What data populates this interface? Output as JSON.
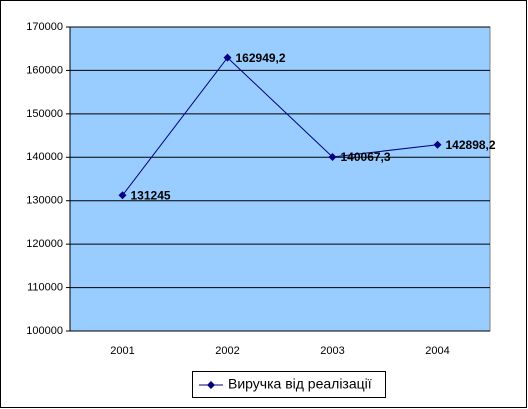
{
  "chart_data": {
    "type": "line",
    "categories": [
      "2001",
      "2002",
      "2003",
      "2004"
    ],
    "series": [
      {
        "name": "Виручка від реалізації",
        "color": "#000080",
        "values": [
          131245,
          162949.2,
          140067.3,
          142898.2
        ],
        "value_labels": [
          "131245",
          "162949,2",
          "140067,3",
          "142898,2"
        ]
      }
    ],
    "ylim": [
      100000,
      170000
    ],
    "yticks": [
      100000,
      110000,
      120000,
      130000,
      140000,
      150000,
      160000,
      170000
    ],
    "grid": true,
    "plot_background": "#99ccff",
    "legend": "bottom"
  }
}
